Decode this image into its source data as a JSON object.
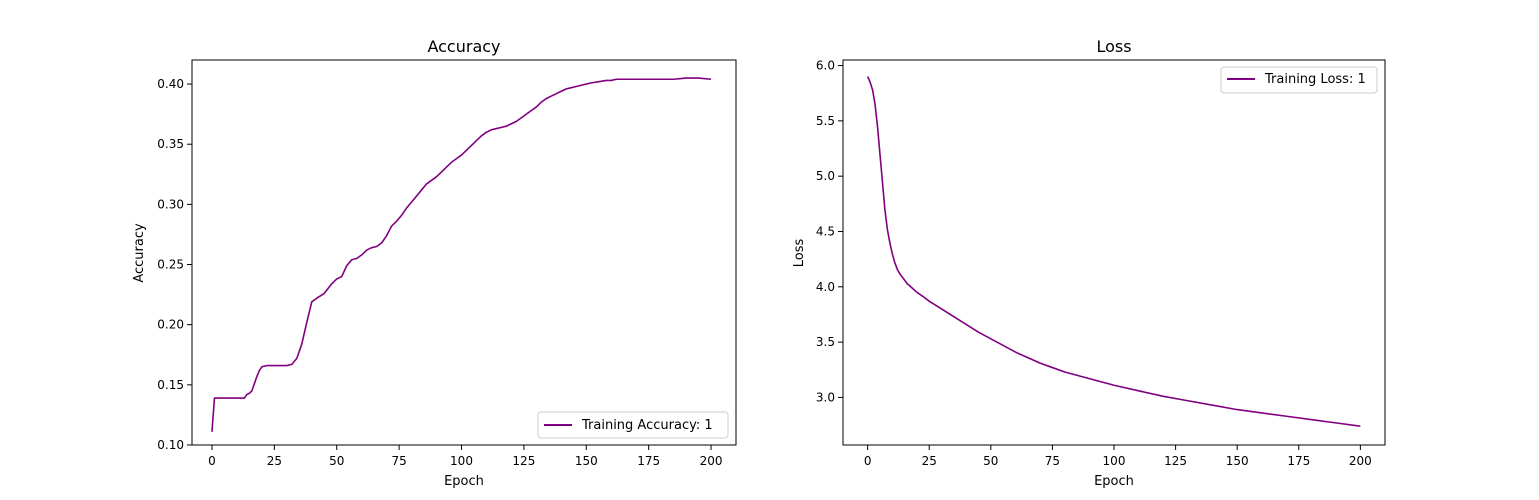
{
  "chart_data": [
    {
      "type": "line",
      "title": "Accuracy",
      "xlabel": "Epoch",
      "ylabel": "Accuracy",
      "xlim": [
        -8,
        210
      ],
      "ylim": [
        0.1,
        0.42
      ],
      "xticks": [
        0,
        25,
        50,
        75,
        100,
        125,
        150,
        175,
        200
      ],
      "yticks": [
        0.1,
        0.15,
        0.2,
        0.25,
        0.3,
        0.35,
        0.4
      ],
      "ytick_labels": [
        "0.10",
        "0.15",
        "0.20",
        "0.25",
        "0.30",
        "0.35",
        "0.40"
      ],
      "grid": false,
      "legend_position": "lower-right",
      "series": [
        {
          "name": "Training Accuracy: 1",
          "color": "#800080",
          "x": [
            0,
            1,
            2,
            5,
            10,
            13,
            14,
            15,
            16,
            18,
            19,
            20,
            22,
            25,
            28,
            30,
            32,
            34,
            36,
            38,
            40,
            42,
            45,
            48,
            50,
            52,
            54,
            56,
            58,
            60,
            62,
            64,
            66,
            68,
            70,
            72,
            74,
            76,
            78,
            80,
            82,
            84,
            86,
            88,
            90,
            92,
            94,
            96,
            98,
            100,
            102,
            104,
            106,
            108,
            110,
            112,
            114,
            116,
            118,
            120,
            122,
            124,
            126,
            128,
            130,
            132,
            134,
            136,
            138,
            140,
            142,
            144,
            146,
            148,
            150,
            152,
            155,
            158,
            160,
            162,
            165,
            170,
            175,
            180,
            185,
            190,
            195,
            200
          ],
          "y": [
            0.111,
            0.139,
            0.139,
            0.139,
            0.139,
            0.139,
            0.142,
            0.143,
            0.145,
            0.157,
            0.162,
            0.165,
            0.166,
            0.166,
            0.166,
            0.166,
            0.167,
            0.172,
            0.184,
            0.202,
            0.219,
            0.222,
            0.226,
            0.234,
            0.238,
            0.24,
            0.249,
            0.254,
            0.255,
            0.258,
            0.262,
            0.264,
            0.265,
            0.268,
            0.274,
            0.282,
            0.286,
            0.291,
            0.297,
            0.302,
            0.307,
            0.312,
            0.317,
            0.32,
            0.323,
            0.327,
            0.331,
            0.335,
            0.338,
            0.341,
            0.345,
            0.349,
            0.353,
            0.357,
            0.36,
            0.362,
            0.363,
            0.364,
            0.365,
            0.367,
            0.369,
            0.372,
            0.375,
            0.378,
            0.381,
            0.385,
            0.388,
            0.39,
            0.392,
            0.394,
            0.396,
            0.397,
            0.398,
            0.399,
            0.4,
            0.401,
            0.402,
            0.403,
            0.403,
            0.404,
            0.404,
            0.404,
            0.404,
            0.404,
            0.404,
            0.405,
            0.405,
            0.404
          ]
        }
      ]
    },
    {
      "type": "line",
      "title": "Loss",
      "xlabel": "Epoch",
      "ylabel": "Loss",
      "xlim": [
        -10,
        210
      ],
      "ylim": [
        2.57,
        6.05
      ],
      "xticks": [
        0,
        25,
        50,
        75,
        100,
        125,
        150,
        175,
        200
      ],
      "yticks": [
        3.0,
        3.5,
        4.0,
        4.5,
        5.0,
        5.5,
        6.0
      ],
      "ytick_labels": [
        "3.0",
        "3.5",
        "4.0",
        "4.5",
        "5.0",
        "5.5",
        "6.0"
      ],
      "grid": false,
      "legend_position": "upper-right",
      "series": [
        {
          "name": "Training Loss: 1",
          "color": "#800080",
          "x": [
            0,
            1,
            2,
            3,
            4,
            5,
            6,
            7,
            8,
            9,
            10,
            11,
            12,
            13,
            14,
            15,
            16,
            18,
            20,
            22,
            25,
            30,
            35,
            40,
            45,
            50,
            55,
            60,
            65,
            70,
            75,
            80,
            90,
            100,
            110,
            120,
            130,
            140,
            150,
            160,
            170,
            180,
            190,
            200
          ],
          "y": [
            5.9,
            5.85,
            5.78,
            5.65,
            5.45,
            5.2,
            4.95,
            4.7,
            4.52,
            4.4,
            4.3,
            4.22,
            4.16,
            4.12,
            4.09,
            4.06,
            4.03,
            3.99,
            3.95,
            3.92,
            3.87,
            3.8,
            3.73,
            3.66,
            3.59,
            3.53,
            3.47,
            3.41,
            3.36,
            3.31,
            3.27,
            3.23,
            3.17,
            3.11,
            3.06,
            3.01,
            2.97,
            2.93,
            2.89,
            2.86,
            2.83,
            2.8,
            2.77,
            2.74
          ]
        }
      ]
    }
  ]
}
